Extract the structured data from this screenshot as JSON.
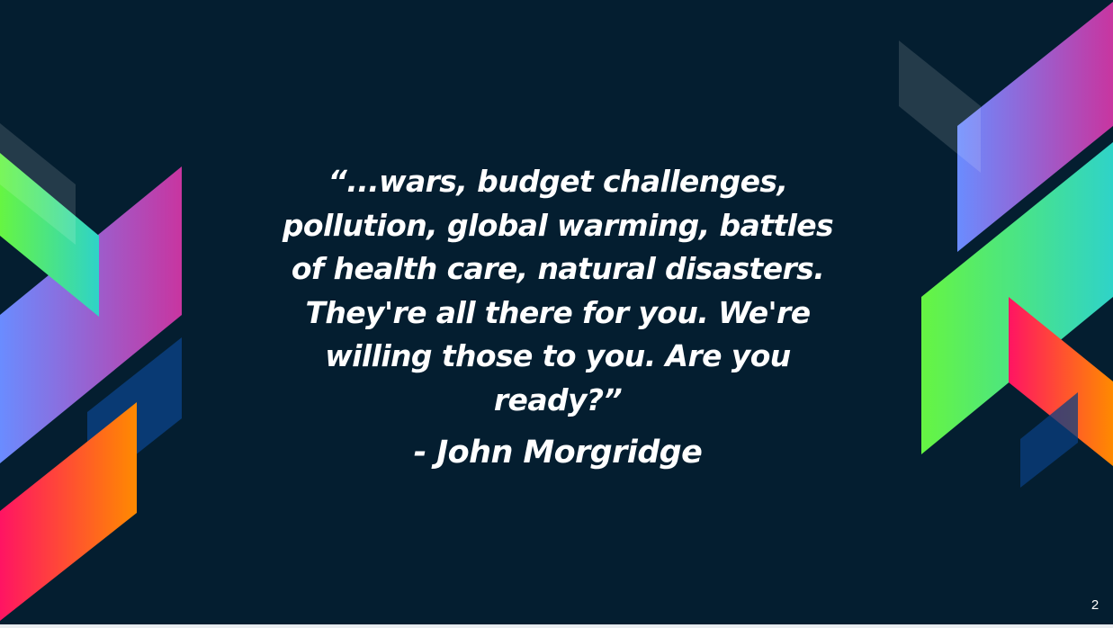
{
  "slide": {
    "quote": "“...wars, budget challenges, pollution, global warming, battles of health care, natural disasters. They're all there for you. We're willing those to you. Are you ready?”",
    "author": "- John Morgridge",
    "slide_number": "2"
  },
  "colors": {
    "background": "#041e30",
    "text": "#ffffff",
    "accent_gradient_magenta": [
      "#6a8cff",
      "#c835a0"
    ],
    "accent_gradient_green": [
      "#66f542",
      "#2fd3c8"
    ],
    "accent_gradient_warm": [
      "#ff1463",
      "#ff8a00"
    ]
  }
}
